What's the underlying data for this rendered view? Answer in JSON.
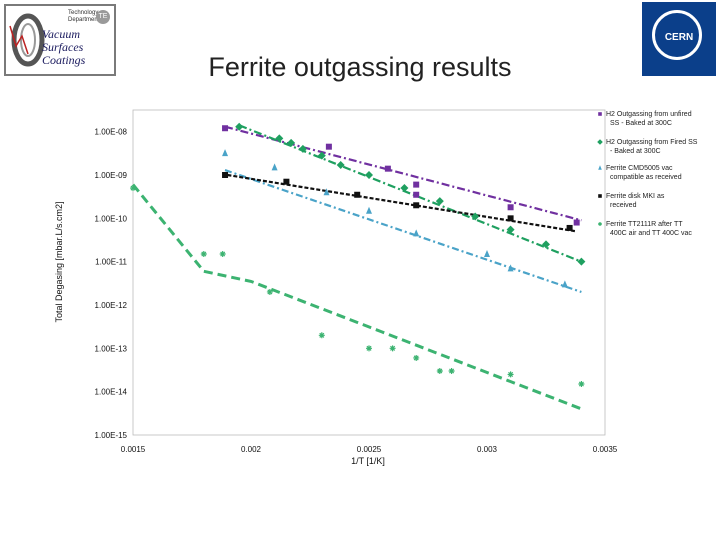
{
  "header": {
    "title": "Ferrite outgassing results",
    "logo_left_text": [
      "Vacuum",
      "Surfaces",
      "Coatings"
    ],
    "logo_left_dept": [
      "Technology",
      "Department"
    ],
    "logo_left_badge": "TE",
    "logo_right_text": "CERN"
  },
  "colors": {
    "purple": "#7030a0",
    "green": "#1fa060",
    "black": "#111111",
    "lightblue": "#4aa3c8",
    "teal": "#3cb371"
  },
  "chart_data": {
    "type": "scatter",
    "xlabel": "1/T [1/K]",
    "ylabel": "Total Degasing [mbar.L/s.cm2]",
    "xlim": [
      0.0015,
      0.0035
    ],
    "ylim_log10": [
      -15,
      -7.5
    ],
    "x_ticks": [
      0.0015,
      0.002,
      0.0025,
      0.003,
      0.0035
    ],
    "x_tick_labels": [
      "0.0015",
      "0.002",
      "0.0025",
      "0.003",
      "0.0035"
    ],
    "y_ticks": [
      1e-15,
      1e-14,
      1e-13,
      1e-12,
      1e-11,
      1e-10,
      1e-09,
      1e-08
    ],
    "y_tick_labels": [
      "1.00E-15",
      "1.00E-14",
      "1.00E-13",
      "1.00E-12",
      "1.00E-11",
      "1.00E-10",
      "1.00E-09",
      "1.00E-08"
    ],
    "series": [
      {
        "name": "H2 Outgassing from unfired SS - Baked at 300C",
        "marker": "square",
        "color": "#7030a0",
        "points": [
          [
            0.00189,
            1.2e-08
          ],
          [
            0.00233,
            4.5e-09
          ],
          [
            0.00258,
            1.4e-09
          ],
          [
            0.0027,
            6e-10
          ],
          [
            0.0027,
            3.5e-10
          ],
          [
            0.0031,
            1.8e-10
          ],
          [
            0.00338,
            8e-11
          ]
        ],
        "fit": [
          [
            0.00189,
            1.3e-08
          ],
          [
            0.0034,
            9e-11
          ]
        ]
      },
      {
        "name": "H2 Outgassing from Fired SS - Baked at 300C",
        "marker": "diamond",
        "color": "#1fa060",
        "points": [
          [
            0.00195,
            1.3e-08
          ],
          [
            0.00212,
            7e-09
          ],
          [
            0.00217,
            5.5e-09
          ],
          [
            0.00222,
            4e-09
          ],
          [
            0.0023,
            2.8e-09
          ],
          [
            0.00238,
            1.7e-09
          ],
          [
            0.0025,
            1e-09
          ],
          [
            0.00265,
            5e-10
          ],
          [
            0.0028,
            2.5e-10
          ],
          [
            0.00295,
            1.1e-10
          ],
          [
            0.0031,
            5.5e-11
          ],
          [
            0.00325,
            2.5e-11
          ],
          [
            0.0034,
            1e-11
          ]
        ],
        "fit": [
          [
            0.00195,
            1.4e-08
          ],
          [
            0.0034,
            1e-11
          ]
        ]
      },
      {
        "name": "Ferrite CMD5005 vac compatible as received",
        "marker": "triangle",
        "color": "#4aa3c8",
        "points": [
          [
            0.00189,
            3.2e-09
          ],
          [
            0.0021,
            1.5e-09
          ],
          [
            0.00232,
            4e-10
          ],
          [
            0.0025,
            1.5e-10
          ],
          [
            0.0027,
            4.5e-11
          ],
          [
            0.003,
            1.5e-11
          ],
          [
            0.0031,
            7e-12
          ],
          [
            0.00333,
            3e-12
          ]
        ],
        "fit": [
          [
            0.00189,
            1.3e-09
          ],
          [
            0.0034,
            2e-12
          ]
        ]
      },
      {
        "name": "Ferrite disk MKI as received",
        "marker": "square",
        "color": "#111111",
        "points": [
          [
            0.00189,
            1e-09
          ],
          [
            0.00215,
            7e-10
          ],
          [
            0.00245,
            3.5e-10
          ],
          [
            0.0027,
            2e-10
          ],
          [
            0.0031,
            1e-10
          ],
          [
            0.00335,
            6e-11
          ]
        ],
        "fit": [
          [
            0.0019,
            1e-09
          ],
          [
            0.00338,
            5e-11
          ]
        ]
      },
      {
        "name": "Ferrite TT2111R after TT 400C air and TT 400C vac",
        "marker": "asterisk",
        "color": "#3cb371",
        "points": [
          [
            0.0015,
            5e-10
          ],
          [
            0.0018,
            1.5e-11
          ],
          [
            0.00188,
            1.5e-11
          ],
          [
            0.00208,
            2e-12
          ],
          [
            0.0023,
            2e-13
          ],
          [
            0.0025,
            1e-13
          ],
          [
            0.0026,
            1e-13
          ],
          [
            0.0027,
            6e-14
          ],
          [
            0.0028,
            3e-14
          ],
          [
            0.00285,
            3e-14
          ],
          [
            0.0031,
            2.5e-14
          ],
          [
            0.0034,
            1.5e-14
          ]
        ],
        "fit": [
          [
            0.0015,
            6e-10
          ],
          [
            0.0018,
            6e-12
          ],
          [
            0.002,
            3.5e-12
          ],
          [
            0.0034,
            4e-15
          ]
        ]
      }
    ],
    "legend": "right"
  }
}
